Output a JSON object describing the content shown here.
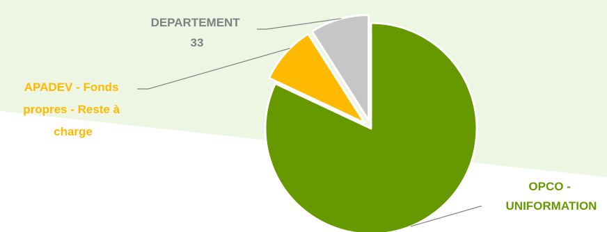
{
  "chart_data": {
    "type": "pie",
    "exploded": true,
    "slices": [
      {
        "label_lines": [
          "OPCO -",
          "UNIFORMATION"
        ],
        "value": 82,
        "color": "#669900",
        "label_color": "#669900"
      },
      {
        "label_lines": [
          "APADEV - Fonds",
          "propres - Reste à",
          "charge"
        ],
        "value": 9,
        "color": "#FFB900",
        "label_color": "#FFB900"
      },
      {
        "label_lines": [
          "DEPARTEMENT",
          "33"
        ],
        "value": 9,
        "color": "#C6C6C6",
        "label_color": "#808080"
      }
    ],
    "background_color": "#EDF5E3",
    "leader_line_color": "#808080"
  }
}
